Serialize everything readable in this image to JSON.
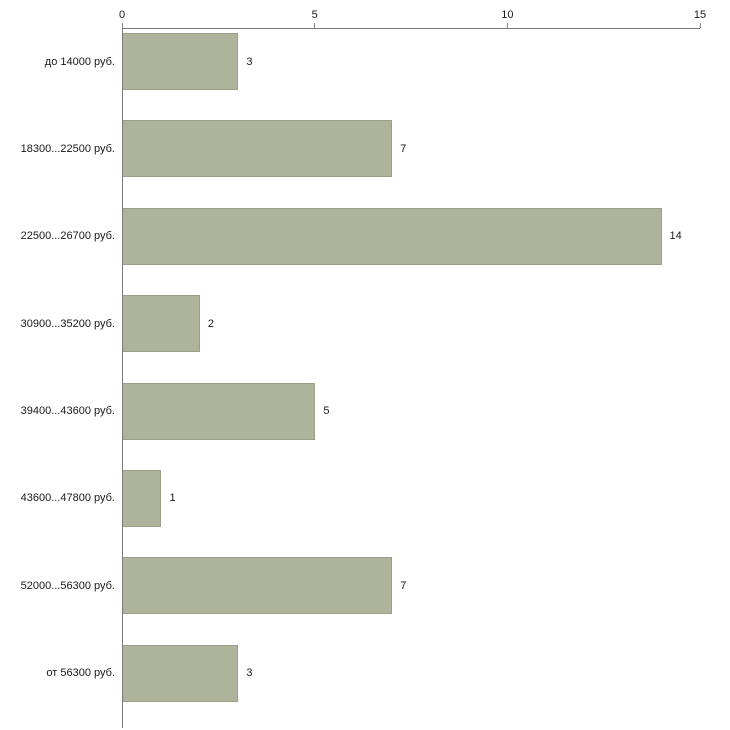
{
  "chart_data": {
    "type": "bar",
    "orientation": "horizontal",
    "title": "",
    "xlabel": "",
    "ylabel": "",
    "xlim": [
      0,
      15
    ],
    "x_ticks": [
      0,
      5,
      10,
      15
    ],
    "categories": [
      "до 14000 руб.",
      "18300...22500 руб.",
      "22500...26700 руб.",
      "30900...35200 руб.",
      "39400...43600 руб.",
      "43600...47800 руб.",
      "52000...56300 руб.",
      "от 56300 руб."
    ],
    "values": [
      3,
      7,
      14,
      2,
      5,
      1,
      7,
      3
    ],
    "bar_color": "#aeb49b",
    "bar_border_color": "#99a086",
    "axis_color": "#7a7a7a",
    "text_color": "#1a1a1a",
    "grid": false,
    "legend": false
  }
}
